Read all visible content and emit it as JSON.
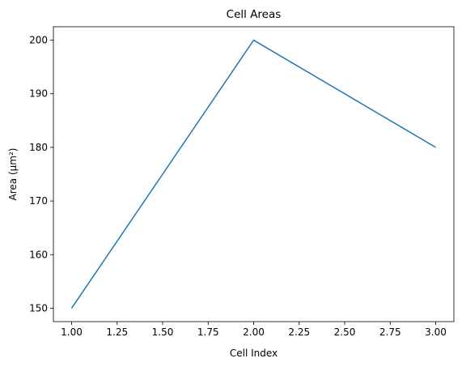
{
  "chart_data": {
    "type": "line",
    "title": "Cell Areas",
    "xlabel": "Cell Index",
    "ylabel": "Area (µm²)",
    "x": [
      1.0,
      2.0,
      3.0
    ],
    "series": [
      {
        "values": [
          150,
          200,
          180
        ],
        "color": "#1f77b4"
      }
    ],
    "xlim": [
      0.9,
      3.1
    ],
    "ylim": [
      147.5,
      202.5
    ],
    "xticks": [
      1.0,
      1.25,
      1.5,
      1.75,
      2.0,
      2.25,
      2.5,
      2.75,
      3.0
    ],
    "xtick_labels": [
      "1.00",
      "1.25",
      "1.50",
      "1.75",
      "2.00",
      "2.25",
      "2.50",
      "2.75",
      "3.00"
    ],
    "yticks": [
      150,
      160,
      170,
      180,
      190,
      200
    ],
    "ytick_labels": [
      "150",
      "160",
      "170",
      "180",
      "190",
      "200"
    ],
    "grid": false,
    "legend": "none"
  }
}
